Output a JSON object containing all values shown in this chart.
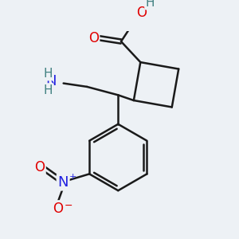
{
  "background_color": "#edf1f5",
  "line_color": "#1a1a1a",
  "bond_width": 1.8,
  "atom_colors": {
    "O": "#e00000",
    "N": "#2020e0",
    "H": "#408080",
    "C": "#1a1a1a"
  },
  "font_size": 11
}
